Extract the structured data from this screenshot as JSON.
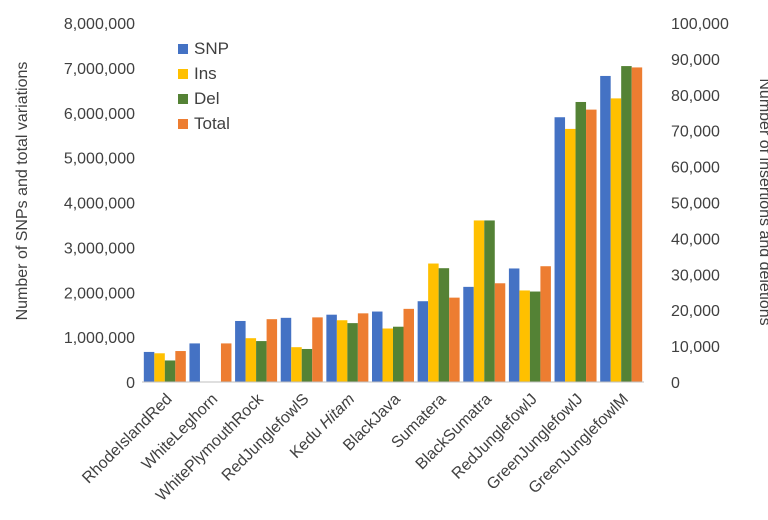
{
  "chart_data": {
    "type": "bar",
    "categories": [
      {
        "text": "RhodeIslandRed",
        "italic": ""
      },
      {
        "text": "WhiteLeghorn",
        "italic": ""
      },
      {
        "text": "WhitePlymouthRock",
        "italic": ""
      },
      {
        "text": "RedJunglefowlS",
        "italic": ""
      },
      {
        "text": "Kedu ",
        "italic": "Hitam"
      },
      {
        "text": "BlackJava",
        "italic": ""
      },
      {
        "text": "Sumatera",
        "italic": ""
      },
      {
        "text": "BlackSumatra",
        "italic": ""
      },
      {
        "text": "RedJunglefowlJ",
        "italic": ""
      },
      {
        "text": "GreenJunglefowlJ",
        "italic": ""
      },
      {
        "text": "GreenJunglefowlM",
        "italic": ""
      }
    ],
    "series": [
      {
        "name": "SNP",
        "color": "#4472C4",
        "axis": "left",
        "values": [
          670000,
          860000,
          1360000,
          1430000,
          1500000,
          1570000,
          1800000,
          2120000,
          2530000,
          5900000,
          6820000
        ]
      },
      {
        "name": "Ins",
        "color": "#FFC000",
        "axis": "right",
        "values": [
          8000,
          0,
          12200,
          9700,
          17200,
          14900,
          33000,
          45000,
          25500,
          70500,
          79000
        ]
      },
      {
        "name": "Del",
        "color": "#548235",
        "axis": "right",
        "values": [
          6000,
          0,
          11400,
          9200,
          16400,
          15400,
          31700,
          45000,
          25200,
          78000,
          88000
        ]
      },
      {
        "name": "Total",
        "color": "#ED7D31",
        "axis": "left",
        "values": [
          690000,
          860000,
          1400000,
          1440000,
          1530000,
          1630000,
          1880000,
          2200000,
          2580000,
          6070000,
          7010000
        ]
      }
    ],
    "ylabel": "Number  of SNPs and total variations",
    "y2label": "Number of insertions and deletions",
    "ylim": [
      0,
      8000000
    ],
    "y2lim": [
      0,
      100000
    ],
    "yticks": [
      "0",
      "1,000,000",
      "2,000,000",
      "3,000,000",
      "4,000,000",
      "5,000,000",
      "6,000,000",
      "7,000,000",
      "8,000,000"
    ],
    "y2ticks": [
      "0",
      "10,000",
      "20,000",
      "30,000",
      "40,000",
      "50,000",
      "60,000",
      "70,000",
      "80,000",
      "90,000",
      "100,000"
    ],
    "legend_position": "top-left",
    "grid": false
  }
}
